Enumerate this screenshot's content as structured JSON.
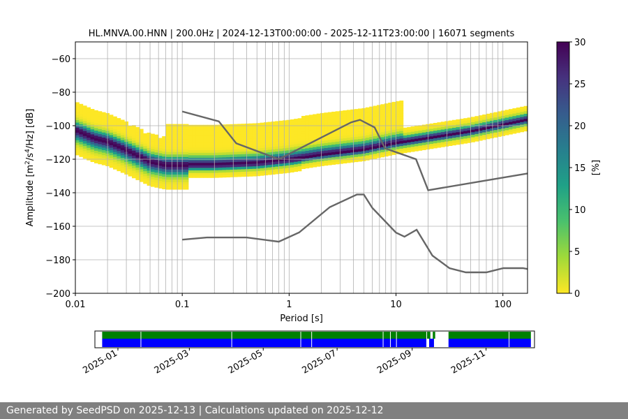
{
  "footer": "Generated by SeedPSD on 2025-12-13 | Calculations updated on 2025-12-12",
  "chart_data": [
    {
      "type": "heatmap",
      "title": "HL.MNVA.00.HNN | 200.0Hz | 2024-12-13T00:00:00 - 2025-12-11T23:00:00 | 16071 segments",
      "xlabel": "Period [s]",
      "ylabel_main": "Amplitude [m",
      "ylabel_sup1": "2",
      "ylabel_mid": "/s",
      "ylabel_sup2": "4",
      "ylabel_end": "/Hz] [dB]",
      "xscale": "log",
      "xlim": [
        0.01,
        170
      ],
      "ylim": [
        -200,
        -50
      ],
      "xticks": [
        {
          "v": 0.01,
          "label": "0.01"
        },
        {
          "v": 0.1,
          "label": "0.1"
        },
        {
          "v": 1,
          "label": "1"
        },
        {
          "v": 10,
          "label": "10"
        },
        {
          "v": 100,
          "label": "100"
        }
      ],
      "yticks": [
        {
          "v": -60,
          "label": "−60"
        },
        {
          "v": -80,
          "label": "−80"
        },
        {
          "v": -100,
          "label": "−100"
        },
        {
          "v": -120,
          "label": "−120"
        },
        {
          "v": -140,
          "label": "−140"
        },
        {
          "v": -160,
          "label": "−160"
        },
        {
          "v": -180,
          "label": "−180"
        },
        {
          "v": -200,
          "label": "−200"
        }
      ],
      "grid": true,
      "psd_mode_curve": [
        [
          0.01,
          -103
        ],
        [
          0.015,
          -108
        ],
        [
          0.02,
          -110
        ],
        [
          0.03,
          -115
        ],
        [
          0.05,
          -122
        ],
        [
          0.07,
          -124
        ],
        [
          0.1,
          -124
        ],
        [
          0.2,
          -124
        ],
        [
          0.5,
          -123
        ],
        [
          1,
          -121
        ],
        [
          2,
          -118
        ],
        [
          5,
          -115
        ],
        [
          10,
          -111
        ],
        [
          20,
          -108
        ],
        [
          50,
          -104
        ],
        [
          100,
          -100
        ],
        [
          170,
          -97
        ]
      ],
      "nhnm": [
        [
          0.1,
          -91.5
        ],
        [
          0.22,
          -97.4
        ],
        [
          0.32,
          -110.5
        ],
        [
          0.8,
          -120
        ],
        [
          3.8,
          -98
        ],
        [
          4.6,
          -96.5
        ],
        [
          6.3,
          -101
        ],
        [
          7.9,
          -113.5
        ],
        [
          15.4,
          -120
        ],
        [
          20,
          -138.5
        ],
        [
          170,
          -128.5
        ]
      ],
      "nlnm": [
        [
          0.1,
          -168
        ],
        [
          0.17,
          -166.7
        ],
        [
          0.4,
          -166.7
        ],
        [
          0.8,
          -169.2
        ],
        [
          1.24,
          -163.7
        ],
        [
          2.4,
          -148.6
        ],
        [
          4.3,
          -141.1
        ],
        [
          5,
          -141.1
        ],
        [
          6,
          -149
        ],
        [
          10,
          -163.8
        ],
        [
          12,
          -166.2
        ],
        [
          15.6,
          -162.1
        ],
        [
          21.9,
          -177.5
        ],
        [
          31.6,
          -185
        ],
        [
          45,
          -187.5
        ],
        [
          70,
          -187.5
        ],
        [
          101,
          -185
        ],
        [
          154,
          -185
        ],
        [
          170,
          -185.5
        ]
      ],
      "colorbar": {
        "label": "[%]",
        "range": [
          0,
          30
        ],
        "ticks": [
          {
            "v": 0,
            "label": "0"
          },
          {
            "v": 5,
            "label": "5"
          },
          {
            "v": 10,
            "label": "10"
          },
          {
            "v": 15,
            "label": "15"
          },
          {
            "v": 20,
            "label": "20"
          },
          {
            "v": 25,
            "label": "25"
          },
          {
            "v": 30,
            "label": "30"
          }
        ],
        "colormap": "viridis_r",
        "colors": [
          "#fde725",
          "#a0da39",
          "#4ac16d",
          "#1fa187",
          "#277f8e",
          "#365c8d",
          "#46327e",
          "#440154"
        ]
      }
    },
    {
      "type": "timeline",
      "xlim": [
        "2024-12-13",
        "2025-12-11"
      ],
      "xticks": [
        "2025-01",
        "2025-03",
        "2025-05",
        "2025-07",
        "2025-09",
        "2025-11"
      ],
      "bar_colors": {
        "available": "#008000",
        "used": "#0000ff"
      },
      "available_spans": [
        [
          "2024-12-19",
          "2025-09-16"
        ],
        [
          "2025-09-18",
          "2025-09-20"
        ],
        [
          "2025-10-01",
          "2025-12-08"
        ]
      ],
      "used_spans": [
        [
          "2024-12-19",
          "2025-09-13"
        ],
        [
          "2025-09-15",
          "2025-09-19"
        ],
        [
          "2025-10-01",
          "2025-12-08"
        ]
      ],
      "gaps": [
        "2025-01-20",
        "2025-04-05",
        "2025-06-01",
        "2025-06-10",
        "2025-08-08",
        "2025-08-14",
        "2025-08-19",
        "2025-09-13",
        "2025-11-20"
      ]
    }
  ]
}
